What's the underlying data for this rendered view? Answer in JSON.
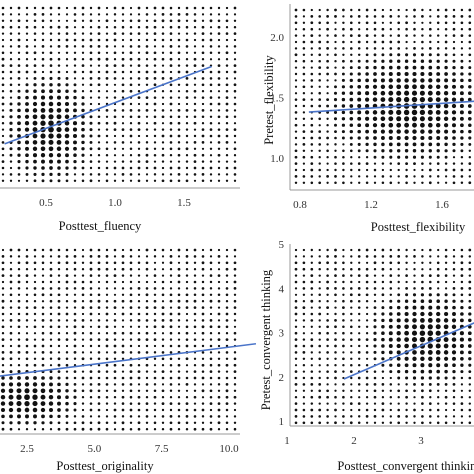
{
  "chart_data": [
    {
      "type": "scatter",
      "panel": "top-left",
      "xlabel": "Posttest_fluency",
      "ylabel": "",
      "x_ticks": [
        "0.5",
        "1.0",
        "1.5"
      ],
      "x_tick_values": [
        0.5,
        1.0,
        1.5
      ],
      "y_ticks": [],
      "xlim": [
        0.2,
        1.75
      ],
      "ylim": [
        0.0,
        2.0
      ],
      "trend_line": {
        "x": [
          0.2,
          1.7
        ],
        "y": [
          0.48,
          1.32
        ],
        "color": "#4a74c9"
      },
      "dense_region": {
        "x": [
          0.2,
          0.85
        ],
        "y": [
          0.05,
          1.25
        ]
      },
      "grid": false
    },
    {
      "type": "scatter",
      "panel": "top-right",
      "xlabel": "Posttest_flexibility",
      "ylabel": "Pretest_flexibility",
      "x_ticks": [
        "0.8",
        "1.2",
        "1.6"
      ],
      "x_tick_values": [
        0.8,
        1.2,
        1.6
      ],
      "y_ticks": [
        "1.0",
        "1.5",
        "2.0"
      ],
      "y_tick_values": [
        1.0,
        1.5,
        2.0
      ],
      "xlim": [
        0.7,
        1.9
      ],
      "ylim": [
        0.8,
        2.15
      ],
      "trend_line": {
        "x": [
          0.85,
          1.9
        ],
        "y": [
          1.38,
          1.48
        ],
        "color": "#4a74c9"
      },
      "dense_region": {
        "x": [
          0.95,
          1.9
        ],
        "y": [
          0.95,
          1.9
        ]
      },
      "grid": false
    },
    {
      "type": "scatter",
      "panel": "bottom-left",
      "xlabel": "Posttest_originality",
      "ylabel": "",
      "x_ticks": [
        "2.5",
        "5.0",
        "7.5",
        "10.0"
      ],
      "x_tick_values": [
        2.5,
        5.0,
        7.5,
        10.0
      ],
      "y_ticks": [],
      "xlim": [
        0.5,
        11.2
      ],
      "ylim": [
        0.0,
        10.0
      ],
      "trend_line": {
        "x": [
          0.5,
          11.0
        ],
        "y": [
          2.9,
          4.8
        ],
        "color": "#4a74c9"
      },
      "dense_region": {
        "x": [
          0.5,
          4.5
        ],
        "y": [
          0.3,
          3.5
        ]
      },
      "grid": false
    },
    {
      "type": "scatter",
      "panel": "bottom-right",
      "xlabel": "Posttest_convergent thinking",
      "ylabel": "Pretest_convergent thinking",
      "x_ticks": [
        "1",
        "2",
        "3"
      ],
      "x_tick_values": [
        1,
        2,
        3
      ],
      "y_ticks": [
        "1",
        "2",
        "3",
        "4",
        "5"
      ],
      "y_tick_values": [
        1,
        2,
        3,
        4,
        5
      ],
      "xlim": [
        0.95,
        4.0
      ],
      "ylim": [
        0.6,
        5.0
      ],
      "trend_line": {
        "x": [
          1.85,
          4.0
        ],
        "y": [
          1.95,
          3.35
        ],
        "color": "#4a74c9"
      },
      "dense_region": {
        "x": [
          2.2,
          4.0
        ],
        "y": [
          1.8,
          4.0
        ]
      },
      "grid": false
    }
  ]
}
